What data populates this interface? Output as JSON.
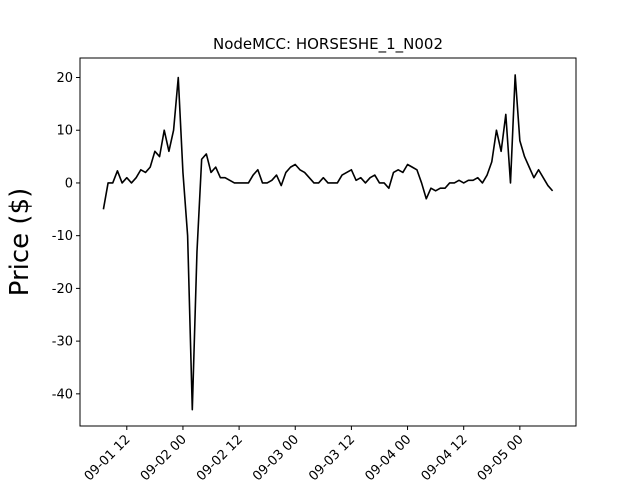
{
  "chart_data": {
    "type": "line",
    "title": "NodeMCC: HORSESHE_1_N002",
    "y_label": "Price ($)",
    "x": [
      "09-01 07",
      "09-01 08",
      "09-01 09",
      "09-01 10",
      "09-01 11",
      "09-01 12",
      "09-01 13",
      "09-01 14",
      "09-01 15",
      "09-01 16",
      "09-01 17",
      "09-01 18",
      "09-01 19",
      "09-01 20",
      "09-01 21",
      "09-01 22",
      "09-01 23",
      "09-02 00",
      "09-02 01",
      "09-02 02",
      "09-02 03",
      "09-02 04",
      "09-02 05",
      "09-02 06",
      "09-02 07",
      "09-02 08",
      "09-02 09",
      "09-02 10",
      "09-02 11",
      "09-02 12",
      "09-02 13",
      "09-02 14",
      "09-02 15",
      "09-02 16",
      "09-02 17",
      "09-02 18",
      "09-02 19",
      "09-02 20",
      "09-02 21",
      "09-02 22",
      "09-02 23",
      "09-03 00",
      "09-03 01",
      "09-03 02",
      "09-03 03",
      "09-03 04",
      "09-03 05",
      "09-03 06",
      "09-03 07",
      "09-03 08",
      "09-03 09",
      "09-03 10",
      "09-03 11",
      "09-03 12",
      "09-03 13",
      "09-03 14",
      "09-03 15",
      "09-03 16",
      "09-03 17",
      "09-03 18",
      "09-03 19",
      "09-03 20",
      "09-03 21",
      "09-03 22",
      "09-03 23",
      "09-04 00",
      "09-04 01",
      "09-04 02",
      "09-04 03",
      "09-04 04",
      "09-04 05",
      "09-04 06",
      "09-04 07",
      "09-04 08",
      "09-04 09",
      "09-04 10",
      "09-04 11",
      "09-04 12",
      "09-04 13",
      "09-04 14",
      "09-04 15",
      "09-04 16",
      "09-04 17",
      "09-04 18",
      "09-04 19",
      "09-04 20",
      "09-04 21",
      "09-04 22",
      "09-04 23",
      "09-05 00",
      "09-05 01",
      "09-05 02",
      "09-05 03",
      "09-05 04",
      "09-05 05",
      "09-05 06",
      "09-05 07"
    ],
    "series": [
      {
        "name": "HORSESHE_1_N002",
        "color": "#000000",
        "values": [
          -5,
          0,
          0,
          2.3,
          0,
          1,
          0,
          1,
          2.5,
          2,
          3,
          6,
          5,
          10,
          6,
          10,
          20,
          2,
          -10,
          -43,
          -13,
          4.5,
          5.5,
          2,
          3,
          1,
          1,
          0.5,
          0,
          0,
          0,
          0,
          1.5,
          2.5,
          0,
          0,
          0.5,
          1.5,
          -0.5,
          2,
          3,
          3.5,
          2.5,
          2,
          1,
          0,
          0,
          1,
          0,
          0,
          0,
          1.5,
          2,
          2.5,
          0.5,
          1,
          0,
          1,
          1.5,
          0,
          0,
          -1,
          2,
          2.5,
          2,
          3.5,
          3,
          2.5,
          0,
          -3,
          -1,
          -1.5,
          -1,
          -1,
          0,
          0,
          0.5,
          0,
          0.5,
          0.5,
          1,
          0,
          1.5,
          4,
          10,
          6,
          13,
          0,
          20.5,
          8,
          5,
          3,
          1,
          2.5,
          1,
          -0.5,
          -1.5
        ]
      }
    ],
    "xlim": [
      "09-01 02",
      "09-05 12"
    ],
    "xticks": [
      "09-01 12",
      "09-02 00",
      "09-02 12",
      "09-03 00",
      "09-03 12",
      "09-04 00",
      "09-04 12",
      "09-05 00"
    ],
    "ylim": [
      -46.1,
      23.7
    ],
    "yticks": [
      -40,
      -30,
      -20,
      -10,
      0,
      10,
      20
    ]
  }
}
